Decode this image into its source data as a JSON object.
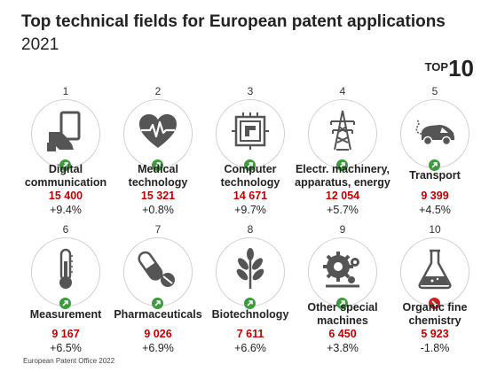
{
  "title": "Top technical fields for European patent applications",
  "subtitle": "2021",
  "badge": {
    "top": "TOP",
    "number": "10"
  },
  "fields": [
    {
      "rank": "1",
      "label": "Digital communication",
      "count": "15 400",
      "change": "+9.4%",
      "trend": "up",
      "icon": "digital-communication-icon"
    },
    {
      "rank": "2",
      "label": "Medical technology",
      "count": "15 321",
      "change": "+0.8%",
      "trend": "up",
      "icon": "heart-pulse-icon"
    },
    {
      "rank": "3",
      "label": "Computer technology",
      "count": "14 671",
      "change": "+9.7%",
      "trend": "up",
      "icon": "chip-icon"
    },
    {
      "rank": "4",
      "label": "Electr. machinery, apparatus, energy",
      "count": "12 054",
      "change": "+5.7%",
      "trend": "up",
      "icon": "power-pylon-icon"
    },
    {
      "rank": "5",
      "label": "Transport",
      "count": "9 399",
      "change": "+4.5%",
      "trend": "up",
      "icon": "electric-car-icon"
    },
    {
      "rank": "6",
      "label": "Measurement",
      "count": "9 167",
      "change": "+6.5%",
      "trend": "up",
      "icon": "thermometer-icon"
    },
    {
      "rank": "7",
      "label": "Pharmaceuticals",
      "count": "9 026",
      "change": "+6.9%",
      "trend": "up",
      "icon": "pills-icon"
    },
    {
      "rank": "8",
      "label": "Biotechnology",
      "count": "7 611",
      "change": "+6.6%",
      "trend": "up",
      "icon": "plant-icon"
    },
    {
      "rank": "9",
      "label": "Other special machines",
      "count": "6 450",
      "change": "+3.8%",
      "trend": "up",
      "icon": "machine-gears-icon"
    },
    {
      "rank": "10",
      "label": "Organic fine chemistry",
      "count": "5 923",
      "change": "-1.8%",
      "trend": "down",
      "icon": "flask-icon"
    }
  ],
  "footer": "European Patent Office 2022",
  "colors": {
    "count": "#c00000",
    "trend_up": "#3c9c3c",
    "trend_down": "#d11e1e",
    "icon": "#555555"
  }
}
